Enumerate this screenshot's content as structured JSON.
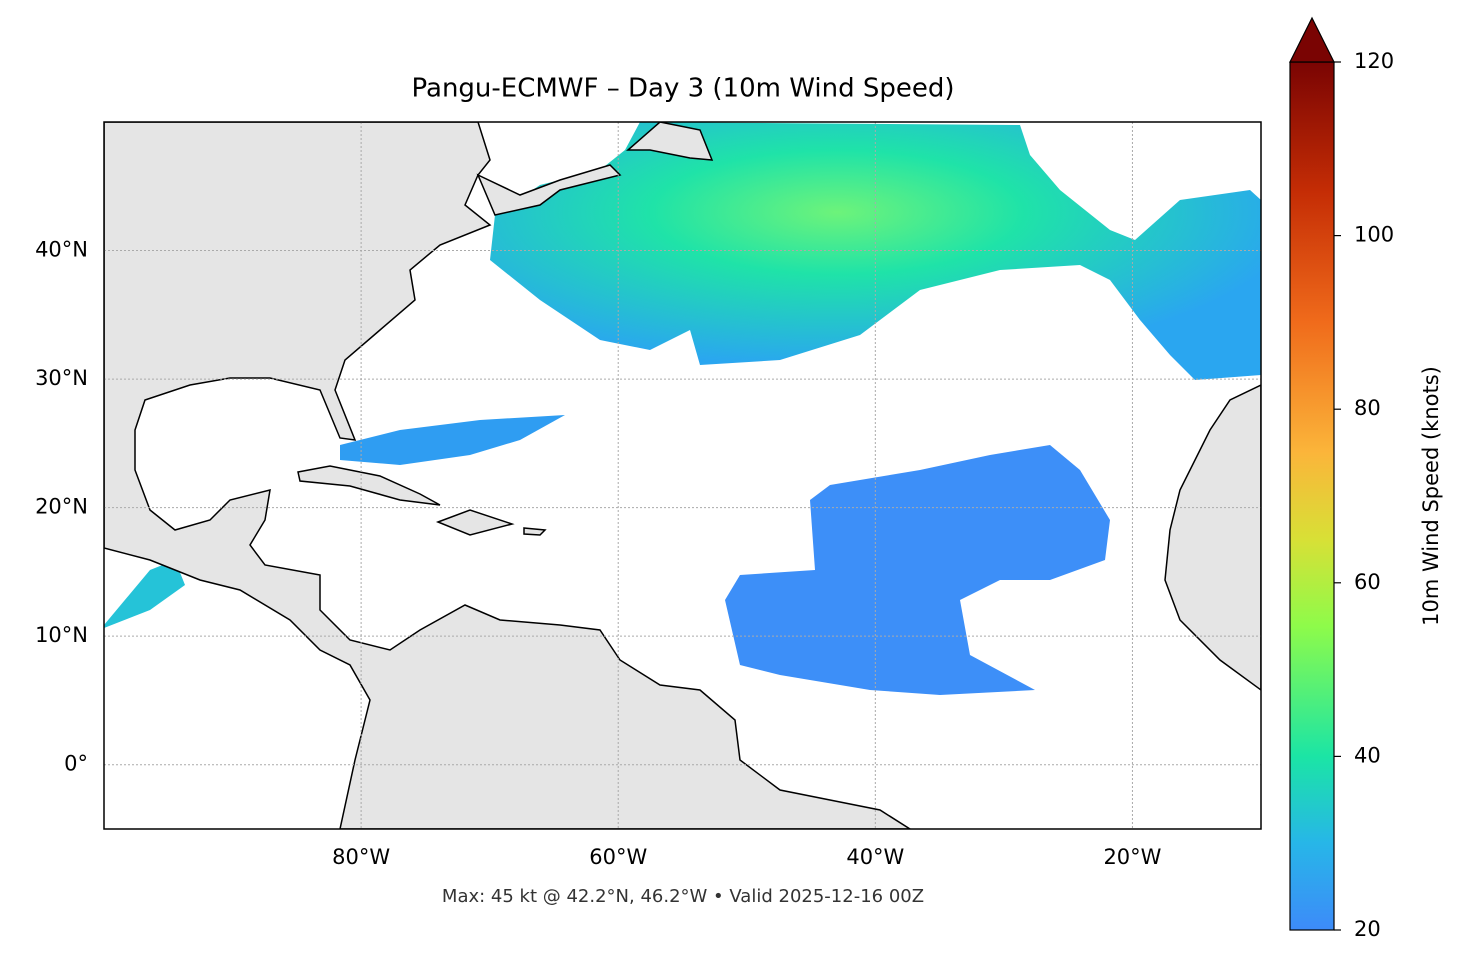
{
  "title": "Pangu-ECMWF – Day 3 (10m Wind Speed)",
  "footer": "Max: 45 kt @ 42.2°N, 46.2°W • Valid 2025-12-16 00Z",
  "map": {
    "xlim": [
      -100,
      -10
    ],
    "ylim": [
      -5,
      50
    ],
    "xticks": [
      {
        "value": -80,
        "label": "80°W"
      },
      {
        "value": -60,
        "label": "60°W"
      },
      {
        "value": -40,
        "label": "40°W"
      },
      {
        "value": -20,
        "label": "20°W"
      }
    ],
    "yticks": [
      {
        "value": 0,
        "label": "0°"
      },
      {
        "value": 10,
        "label": "10°N"
      },
      {
        "value": 20,
        "label": "20°N"
      },
      {
        "value": 30,
        "label": "30°N"
      },
      {
        "value": 40,
        "label": "40°N"
      }
    ],
    "grid": true
  },
  "colorbar": {
    "label": "10m Wind Speed (knots)",
    "lim": [
      20,
      120
    ],
    "ticks": [
      20,
      40,
      60,
      80,
      100,
      120
    ],
    "extend": "max"
  }
}
